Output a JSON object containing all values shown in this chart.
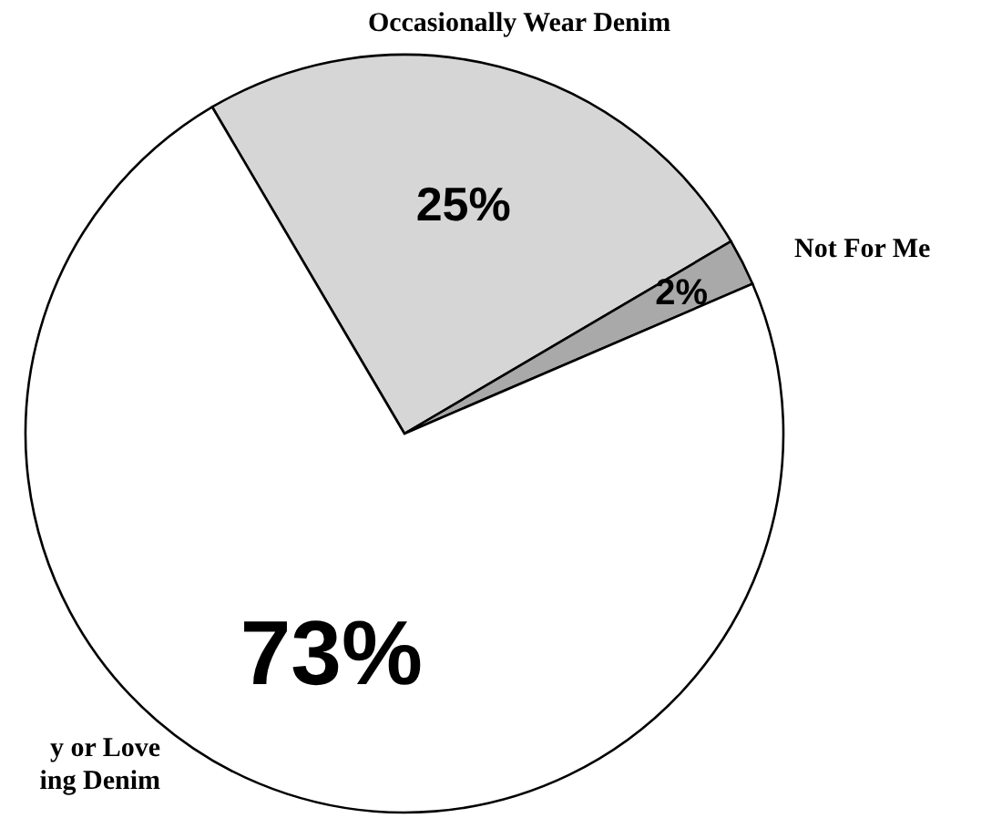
{
  "chart_data": {
    "type": "pie",
    "categories": [
      "Occasionally Wear Denim",
      "Not For Me",
      "y or Love\ning Denim"
    ],
    "values": [
      25,
      2,
      73
    ],
    "value_labels": [
      "25%",
      "2%",
      "73%"
    ],
    "colors": [
      "#d6d6d6",
      "#a9a9a9",
      "#ffffff"
    ]
  }
}
